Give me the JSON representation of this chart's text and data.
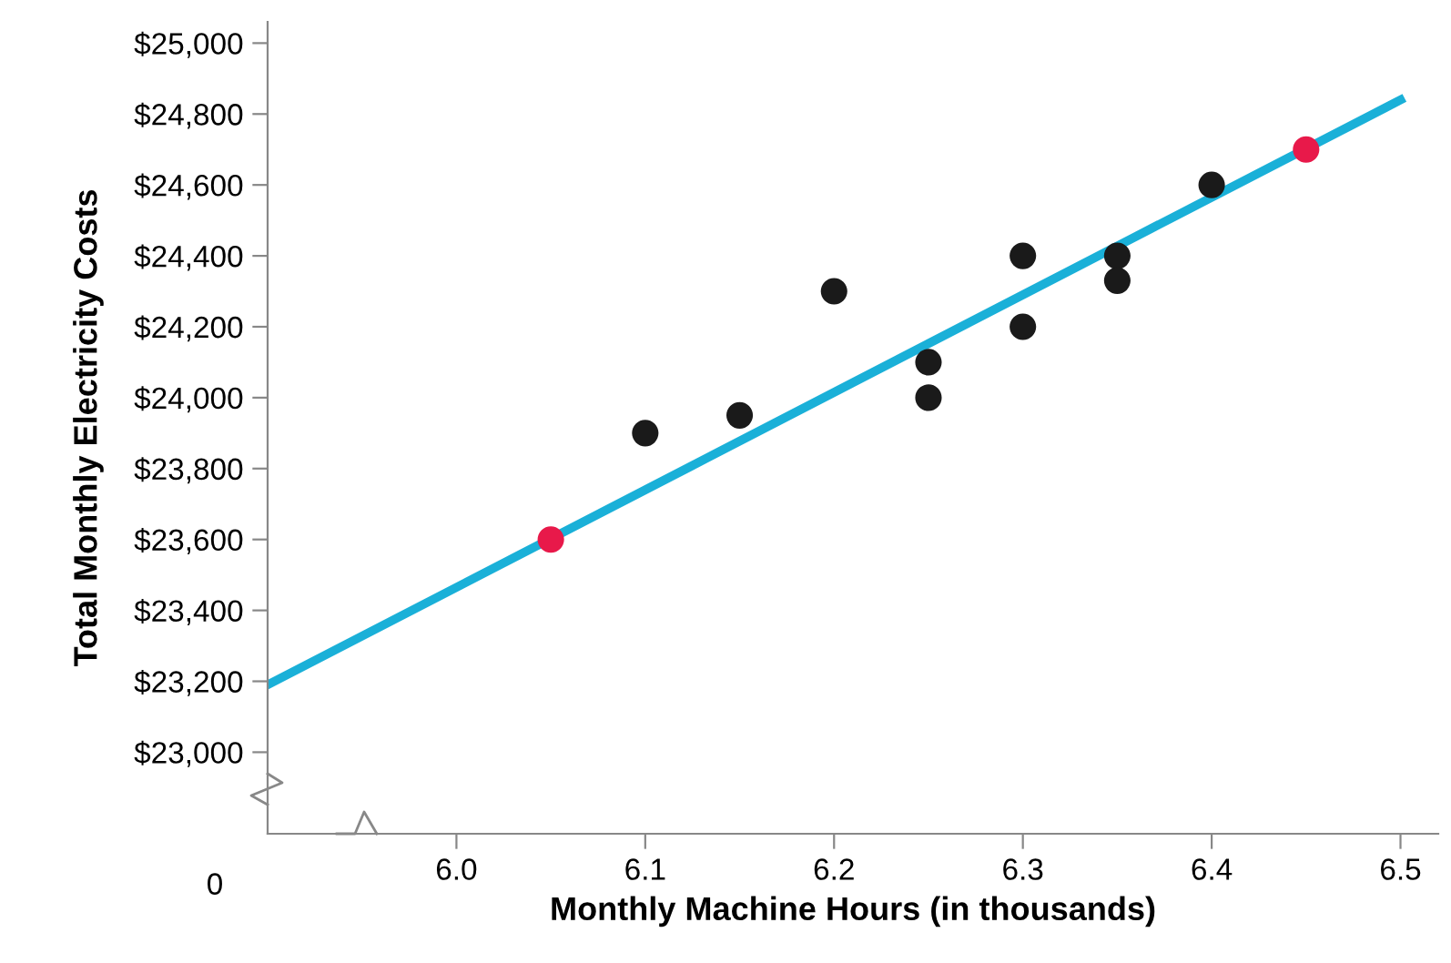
{
  "chart_data": {
    "type": "scatter",
    "xlabel": "Monthly Machine Hours (in thousands)",
    "ylabel": "Total Monthly Electricity Costs",
    "series": [
      {
        "type": "line",
        "marker": "none",
        "color": "#1ab0d8",
        "x": [
          5.9,
          6.5
        ],
        "values": [
          23190,
          24840
        ]
      },
      {
        "color": "#1a1a1a",
        "x": [
          6.1,
          6.15,
          6.2,
          6.25,
          6.25,
          6.3,
          6.3,
          6.35,
          6.35,
          6.4
        ],
        "values": [
          23900,
          23950,
          24300,
          24100,
          24000,
          24400,
          24200,
          24400,
          24330,
          24600
        ]
      },
      {
        "color": "#e8194a",
        "x": [
          6.05,
          6.45
        ],
        "values": [
          23600,
          24700
        ]
      }
    ],
    "marker": "circle",
    "xlim": [
      5.9,
      6.52
    ],
    "xticks": [
      {
        "value": 6.0,
        "label": "6.0"
      },
      6.1,
      6.2,
      6.3,
      6.4,
      6.5
    ],
    "ylim": [
      22770,
      25060
    ],
    "yticks": [
      {
        "value": 23000,
        "label": "$23,000"
      },
      {
        "value": 23200,
        "label": "$23,200"
      },
      {
        "value": 23400,
        "label": "$23,400"
      },
      {
        "value": 23600,
        "label": "$23,600"
      },
      {
        "value": 23800,
        "label": "$23,800"
      },
      {
        "value": 24000,
        "label": "$24,000"
      },
      {
        "value": 24200,
        "label": "$24,200"
      },
      {
        "value": 24400,
        "label": "$24,400"
      },
      {
        "value": 24600,
        "label": "$24,600"
      },
      {
        "value": 24800,
        "label": "$24,800"
      },
      {
        "value": 25000,
        "label": "$25,000"
      }
    ],
    "annotations": [
      "0"
    ],
    "grid": false,
    "legend": false
  }
}
